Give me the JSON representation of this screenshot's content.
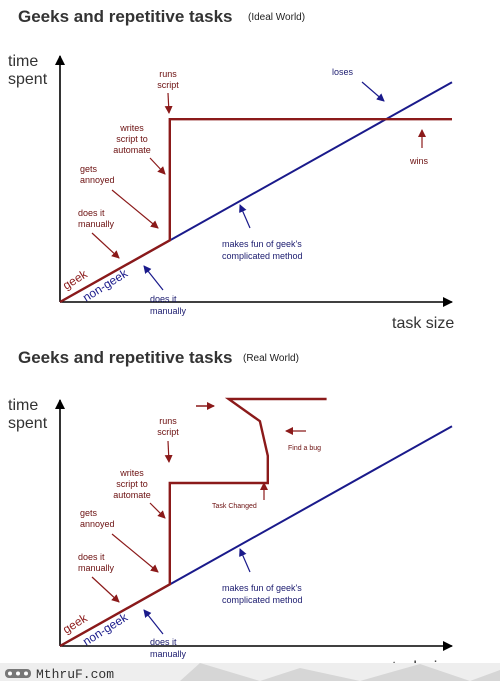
{
  "chart_data": [
    {
      "type": "line",
      "title": "Geeks and repetitive tasks",
      "subtitle": "(Ideal World)",
      "xlabel": "task size",
      "ylabel": [
        "time",
        "spent"
      ],
      "xlim": [
        0,
        100
      ],
      "ylim": [
        0,
        100
      ],
      "series": [
        {
          "name": "geek",
          "color": "#8b1a1a",
          "x": [
            0,
            28,
            28,
            100
          ],
          "y": [
            0,
            25,
            74,
            74
          ]
        },
        {
          "name": "non-geek",
          "color": "#1a1a8b",
          "x": [
            0,
            100
          ],
          "y": [
            0,
            89
          ]
        }
      ],
      "annotations": [
        {
          "id": "runs-script",
          "lines": [
            "runs",
            "script"
          ],
          "color": "red"
        },
        {
          "id": "writes-script",
          "lines": [
            "writes",
            "script to",
            "automate"
          ],
          "color": "red"
        },
        {
          "id": "gets-annoyed",
          "lines": [
            "gets",
            "annoyed"
          ],
          "color": "red"
        },
        {
          "id": "does-it-manually-geek",
          "lines": [
            "does it",
            "manually"
          ],
          "color": "red"
        },
        {
          "id": "loses",
          "lines": [
            "loses"
          ],
          "color": "blue"
        },
        {
          "id": "wins",
          "lines": [
            "wins"
          ],
          "color": "red"
        },
        {
          "id": "makes-fun",
          "lines": [
            "makes fun of geek's",
            "complicated method"
          ],
          "color": "blue"
        },
        {
          "id": "does-it-manually-nongeek",
          "lines": [
            "does it",
            "manually"
          ],
          "color": "blue"
        }
      ]
    },
    {
      "type": "line",
      "title": "Geeks and repetitive tasks",
      "subtitle": "(Real World)",
      "xlabel": "task size",
      "ylabel": [
        "time",
        "spent"
      ],
      "xlim": [
        0,
        100
      ],
      "ylim": [
        0,
        100
      ],
      "series": [
        {
          "name": "geek",
          "color": "#8b1a1a",
          "x": [
            0,
            28,
            28,
            53,
            53,
            51,
            43,
            68
          ],
          "y": [
            0,
            25,
            66,
            66,
            77,
            91,
            100,
            100
          ]
        },
        {
          "name": "non-geek",
          "color": "#1a1a8b",
          "x": [
            0,
            100
          ],
          "y": [
            0,
            89
          ]
        }
      ],
      "annotations": [
        {
          "id": "runs-script",
          "lines": [
            "runs",
            "script"
          ],
          "color": "red"
        },
        {
          "id": "writes-script",
          "lines": [
            "writes",
            "script to",
            "automate"
          ],
          "color": "red"
        },
        {
          "id": "gets-annoyed",
          "lines": [
            "gets",
            "annoyed"
          ],
          "color": "red"
        },
        {
          "id": "does-it-manually-geek",
          "lines": [
            "does it",
            "manually"
          ],
          "color": "red"
        },
        {
          "id": "find-a-bug",
          "lines": [
            "Find a bug"
          ],
          "color": "red"
        },
        {
          "id": "task-changed",
          "lines": [
            "Task Changed"
          ],
          "color": "red"
        },
        {
          "id": "makes-fun",
          "lines": [
            "makes fun of geek's",
            "complicated method"
          ],
          "color": "blue"
        },
        {
          "id": "does-it-manually-nongeek",
          "lines": [
            "does it",
            "manually"
          ],
          "color": "blue"
        }
      ]
    }
  ],
  "footer": {
    "watermark": "MthruF.com"
  },
  "colors": {
    "geek": "#8b1a1a",
    "nongeek": "#1a1a8b",
    "arrow_red": "#8b1a1a",
    "arrow_blue": "#1a1a8b"
  }
}
